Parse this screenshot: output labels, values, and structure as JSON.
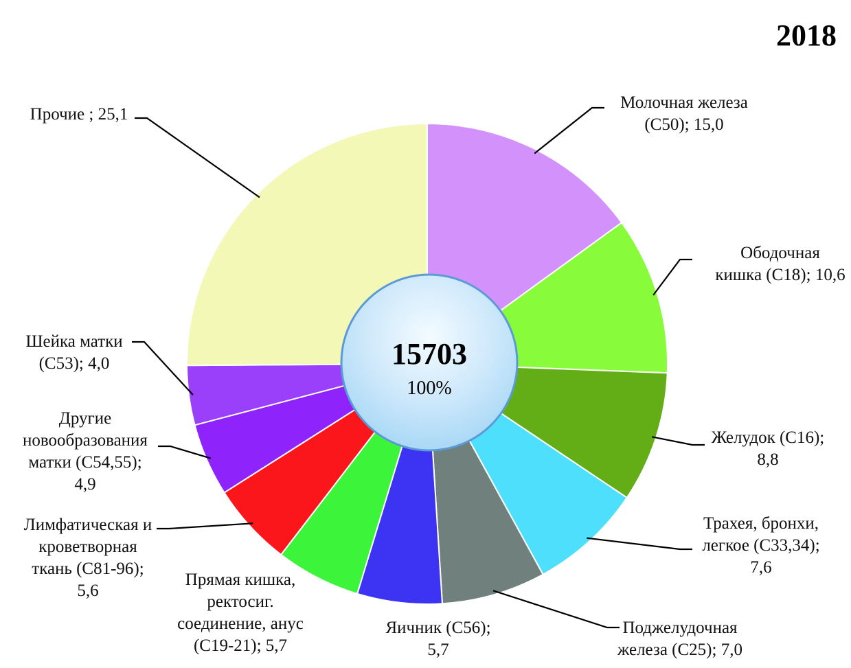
{
  "chart_data": {
    "type": "pie",
    "title": "2018",
    "center_total": "15703",
    "center_percent": "100%",
    "start_angle_deg": 0,
    "direction": "clockwise",
    "slices": [
      {
        "label_lines": [
          "Молочная железа",
          "(С50); 15,0"
        ],
        "value": 15.0,
        "color": "#d291fb"
      },
      {
        "label_lines": [
          "Ободочная",
          "кишка (С18); 10,6"
        ],
        "value": 10.6,
        "color": "#88fb3a"
      },
      {
        "label_lines": [
          "Желудок (С16);",
          "8,8"
        ],
        "value": 8.8,
        "color": "#63ad17"
      },
      {
        "label_lines": [
          "Трахея, бронхи,",
          "легкое (С33,34);",
          "7,6"
        ],
        "value": 7.6,
        "color": "#4ddffb"
      },
      {
        "label_lines": [
          "Поджелудочная",
          "железа (С25); 7,0"
        ],
        "value": 7.0,
        "color": "#6f807d"
      },
      {
        "label_lines": [
          "Яичник (С56);",
          "5,7"
        ],
        "value": 5.7,
        "color": "#3d33f3"
      },
      {
        "label_lines": [
          "Прямая кишка,",
          "ректосиг.",
          "соединение, анус",
          "(С19-21); 5,7"
        ],
        "value": 5.7,
        "color": "#3cf43a"
      },
      {
        "label_lines": [
          "Лимфатическая и",
          "кроветворная",
          "ткань (С81-96);",
          "5,6"
        ],
        "value": 5.6,
        "color": "#fb161b"
      },
      {
        "label_lines": [
          "Другие",
          "новообразования",
          "матки (С54,55);",
          "4,9"
        ],
        "value": 4.9,
        "color": "#8e23fc"
      },
      {
        "label_lines": [
          "Шейка матки",
          "(С53); 4,0"
        ],
        "value": 4.0,
        "color": "#9a3ffa"
      },
      {
        "label_lines": [
          "Прочие ; 25,1"
        ],
        "value": 25.1,
        "color": "#f4f8b6"
      }
    ]
  }
}
